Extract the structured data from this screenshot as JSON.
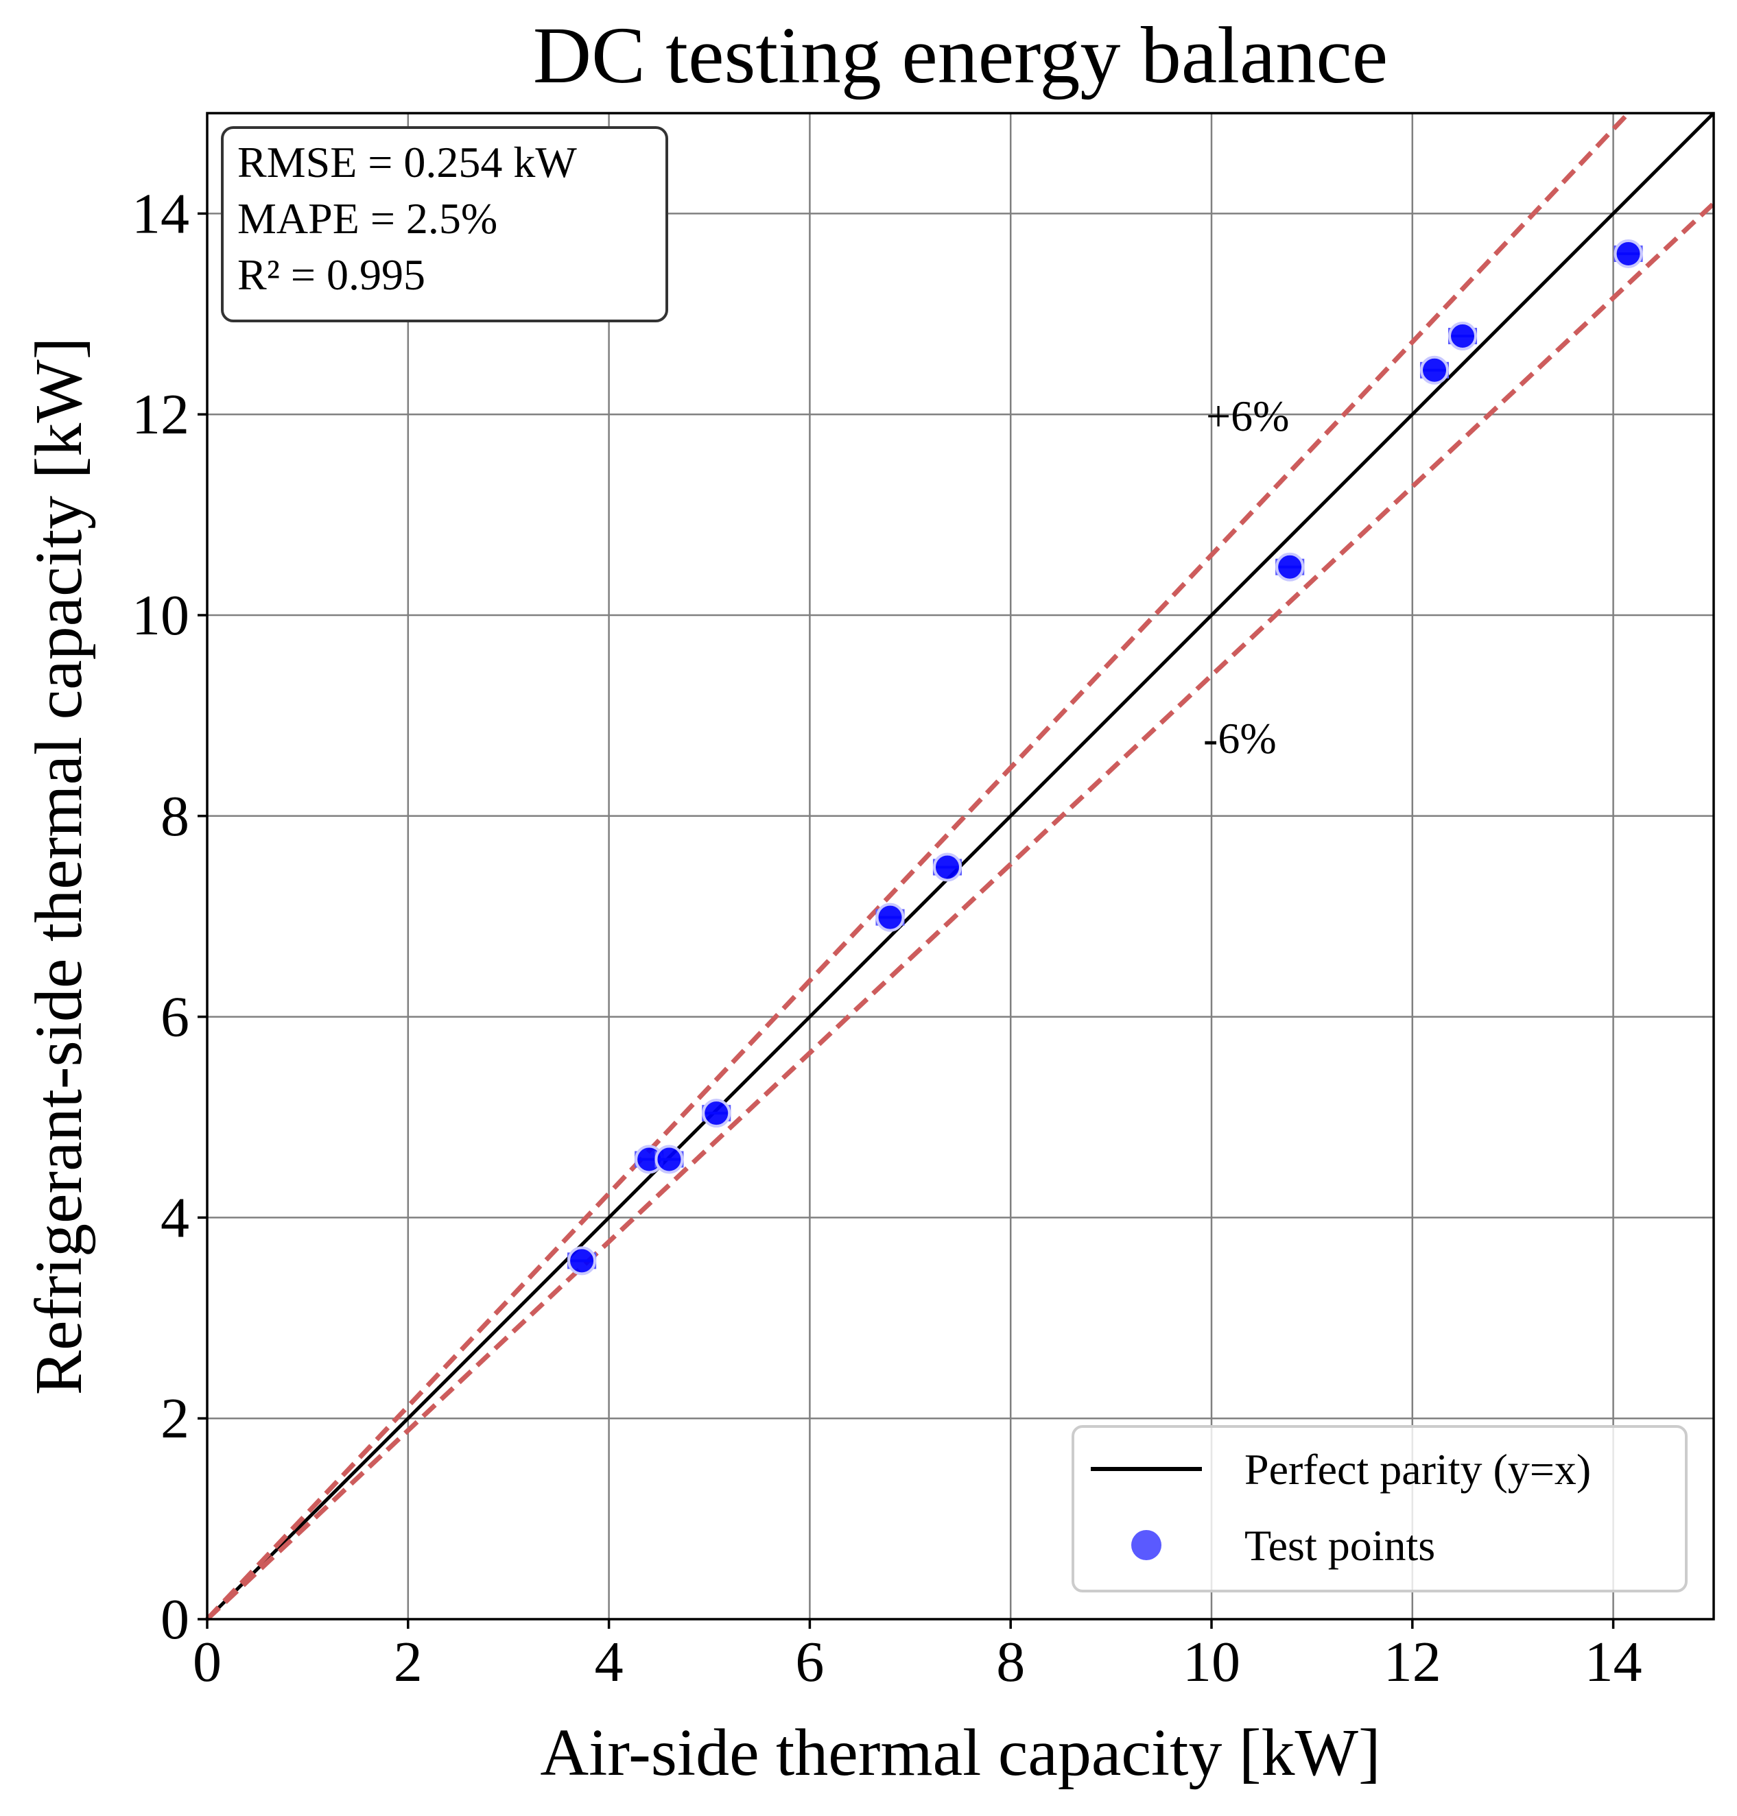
{
  "chart_data": {
    "type": "scatter",
    "title": "DC testing energy balance",
    "xlabel": "Air-side thermal capacity [kW]",
    "ylabel": "Refrigerant-side thermal capacity [kW]",
    "xlim": [
      0,
      15
    ],
    "ylim": [
      0,
      15
    ],
    "xticks": [
      0,
      2,
      4,
      6,
      8,
      10,
      12,
      14
    ],
    "yticks": [
      0,
      2,
      4,
      6,
      8,
      10,
      12,
      14
    ],
    "xtick_labels": [
      "0",
      "2",
      "4",
      "6",
      "8",
      "10",
      "12",
      "14"
    ],
    "ytick_labels": [
      "0",
      "2",
      "4",
      "6",
      "8",
      "10",
      "12",
      "14"
    ],
    "grid": true,
    "series": [
      {
        "name": "Test points",
        "kind": "scatter",
        "color": "#0000ff",
        "points": [
          {
            "x": 3.73,
            "y": 3.57,
            "xerr": 0.13
          },
          {
            "x": 4.4,
            "y": 4.58,
            "xerr": 0.13
          },
          {
            "x": 4.6,
            "y": 4.58,
            "xerr": 0.13
          },
          {
            "x": 5.07,
            "y": 5.04,
            "xerr": 0.13
          },
          {
            "x": 6.8,
            "y": 6.99,
            "xerr": 0.13
          },
          {
            "x": 7.37,
            "y": 7.49,
            "xerr": 0.13
          },
          {
            "x": 10.78,
            "y": 10.48,
            "xerr": 0.13
          },
          {
            "x": 12.22,
            "y": 12.44,
            "xerr": 0.13
          },
          {
            "x": 12.5,
            "y": 12.78,
            "xerr": 0.13
          },
          {
            "x": 14.15,
            "y": 13.6,
            "xerr": 0.13
          }
        ]
      }
    ],
    "reference_lines": [
      {
        "name": "Perfect parity (y=x)",
        "slope": 1.0,
        "style": "solid",
        "color": "#000000"
      },
      {
        "name": "+6%",
        "slope": 1.06,
        "style": "dashed",
        "color": "#cd5c5c"
      },
      {
        "name": "-6%",
        "slope": 0.94,
        "style": "dashed",
        "color": "#cd5c5c"
      }
    ],
    "annotations": [
      {
        "text": "+6%",
        "x": 9.95,
        "y": 11.95
      },
      {
        "text": "-6%",
        "x": 9.92,
        "y": 8.68
      }
    ],
    "stats_box": {
      "lines": [
        "RMSE = 0.254 kW",
        "MAPE = 2.5%",
        "R² = 0.995"
      ],
      "position": "top-left"
    },
    "legend": {
      "position": "bottom-right",
      "entries": [
        {
          "label": "Perfect parity (y=x)",
          "marker": "line",
          "color": "#000000"
        },
        {
          "label": "Test points",
          "marker": "circle",
          "color": "#5a5aff"
        }
      ]
    }
  }
}
